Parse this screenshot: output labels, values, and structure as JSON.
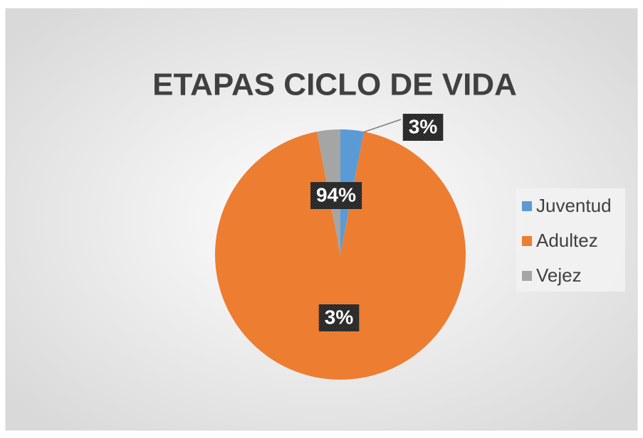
{
  "chart_data": {
    "type": "pie",
    "title": "ETAPAS CICLO DE VIDA",
    "categories": [
      "Juventud",
      "Adultez",
      "Vejez"
    ],
    "values": [
      3,
      94,
      3
    ],
    "value_labels": [
      "3%",
      "94%",
      "3%"
    ],
    "colors": [
      "#5b9bd5",
      "#ed7d31",
      "#a5a5a5"
    ],
    "legend": "right"
  }
}
